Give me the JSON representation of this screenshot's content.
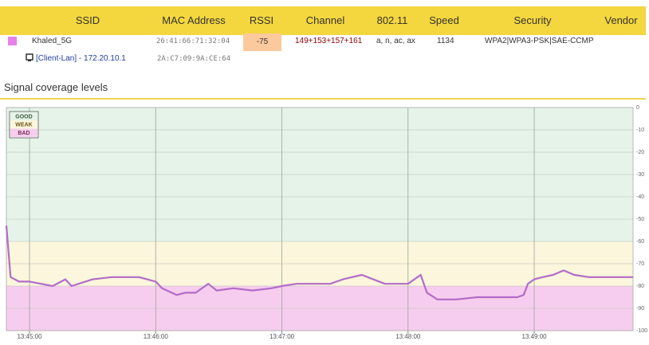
{
  "table": {
    "columns": [
      "SSID",
      "MAC Address",
      "RSSI",
      "Channel",
      "802.11",
      "Speed",
      "Security",
      "Vendor"
    ],
    "rows": [
      {
        "color": "#e680ea",
        "ssid": "Khaled_5G",
        "mac": "26:41:66:71:32:04",
        "rssi": -75,
        "channel": "149+153+157+161",
        "standard": "a, n, ac, ax",
        "speed": 1134,
        "security": "WPA2|WPA3-PSK|SAE-CCMP"
      },
      {
        "client": "[Client-Lan] - 172.20.10.1",
        "mac": "2A:C7:09:9A:CE:64"
      }
    ]
  },
  "section_title": "Signal coverage levels",
  "chart_data": {
    "type": "line",
    "x": [
      "13:44:49",
      "13:44:51",
      "13:44:55",
      "13:45:00",
      "13:45:11",
      "13:45:17",
      "13:45:20",
      "13:45:30",
      "13:45:39",
      "13:45:46",
      "13:45:52",
      "13:46:00",
      "13:46:03",
      "13:46:10",
      "13:46:14",
      "13:46:19",
      "13:46:25",
      "13:46:29",
      "13:46:37",
      "13:46:46",
      "13:46:55",
      "13:47:00",
      "13:47:07",
      "13:47:14",
      "13:47:23",
      "13:47:29",
      "13:47:38",
      "13:47:49",
      "13:47:53",
      "13:48:00",
      "13:48:06",
      "13:48:09",
      "13:48:14",
      "13:48:23",
      "13:48:33",
      "13:48:36",
      "13:48:52",
      "13:48:55",
      "13:48:57",
      "13:49:00",
      "13:49:04",
      "13:49:09",
      "13:49:14",
      "13:49:19",
      "13:49:26",
      "13:49:47"
    ],
    "series": [
      {
        "color": "#b36cc8",
        "values": [
          -53,
          -76,
          -78,
          -78,
          -80,
          -77,
          -80,
          -77,
          -76,
          -76,
          -76,
          -78,
          -81,
          -84,
          -83,
          -83,
          -79,
          -82,
          -81,
          -82,
          -81,
          -80,
          -79,
          -79,
          -79,
          -77,
          -75,
          -79,
          -79,
          -79,
          -75,
          -83,
          -86,
          -86,
          -85,
          -85,
          -85,
          -84,
          -79,
          -77,
          -76,
          -75,
          -73,
          -75,
          -76,
          -76
        ]
      }
    ],
    "xlim": [
      "13:44:49",
      "13:49:47"
    ],
    "xticks": [
      "13:45:00",
      "13:46:00",
      "13:47:00",
      "13:48:00",
      "13:49:00"
    ],
    "ylim": [
      -100,
      0
    ],
    "yticks": [
      0,
      -10,
      -20,
      -30,
      -40,
      -50,
      -60,
      -70,
      -80,
      -90,
      -100
    ],
    "grid": true,
    "bands": [
      {
        "name": "GOOD",
        "from": 0,
        "to": -60,
        "color": "#e5f3e8",
        "text_color": "#3d5a3d"
      },
      {
        "name": "WEAK",
        "from": -60,
        "to": -80,
        "color": "#fbf6dc",
        "text_color": "#6b5520"
      },
      {
        "name": "BAD",
        "from": -80,
        "to": -100,
        "color": "#f6cdee",
        "text_color": "#7a3050"
      }
    ]
  }
}
